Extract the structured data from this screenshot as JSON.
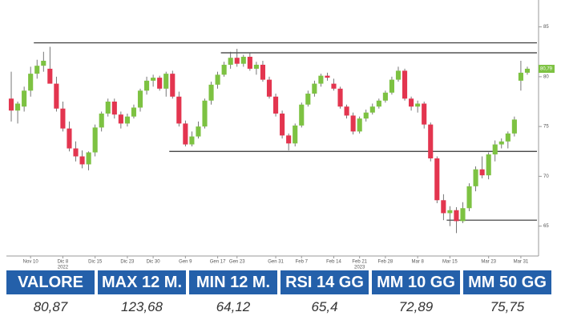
{
  "chart_data": {
    "type": "candlestick",
    "open": [
      77.8,
      76.6,
      77.0,
      78.6,
      80.3,
      81.1,
      80.8,
      79.3,
      76.8,
      74.8,
      72.8,
      72.0,
      71.2,
      72.4,
      74.9,
      76.3,
      77.5,
      76.2,
      75.3,
      76.0,
      76.9,
      78.6,
      79.6,
      79.9,
      78.8,
      80.3,
      78.0,
      75.3,
      73.2,
      74.0,
      75.0,
      77.6,
      79.2,
      80.2,
      81.2,
      81.9,
      81.3,
      82.0,
      80.8,
      81.2,
      79.7,
      78.0,
      76.3,
      74.1,
      73.3,
      75.1,
      77.2,
      78.3,
      79.3,
      80.1,
      79.3,
      78.8,
      77.0,
      76.1,
      74.5,
      75.8,
      76.4,
      77.0,
      77.6,
      78.4,
      79.7,
      80.6,
      77.8,
      77.0,
      77.3,
      75.2,
      71.8,
      67.6,
      66.3,
      66.6,
      65.5,
      66.8,
      69.0,
      70.7,
      70.1,
      72.2,
      73.2,
      73.5,
      74.3,
      79.6,
      80.4
    ],
    "high": [
      80.5,
      77.5,
      79.0,
      81.0,
      81.7,
      82.5,
      83.0,
      80.0,
      77.5,
      75.5,
      73.5,
      72.6,
      72.5,
      75.2,
      76.5,
      77.8,
      77.8,
      76.5,
      76.3,
      77.2,
      78.8,
      80.0,
      80.2,
      80.1,
      80.5,
      80.6,
      78.5,
      75.6,
      74.5,
      75.5,
      77.8,
      79.5,
      80.5,
      81.5,
      82.5,
      82.8,
      82.2,
      82.4,
      81.5,
      81.6,
      80.0,
      78.3,
      76.6,
      74.3,
      75.3,
      77.4,
      78.6,
      79.6,
      80.3,
      80.4,
      79.8,
      79.0,
      77.2,
      76.4,
      76.0,
      76.7,
      77.3,
      77.8,
      78.6,
      80.0,
      81.0,
      80.8,
      78.0,
      77.6,
      77.5,
      75.4,
      72.0,
      68.2,
      67.0,
      66.9,
      67.4,
      69.3,
      71.0,
      72.0,
      72.4,
      73.6,
      73.8,
      74.5,
      76.0,
      81.6,
      81.0
    ],
    "low": [
      75.5,
      75.3,
      76.5,
      78.0,
      79.8,
      80.5,
      79.5,
      76.5,
      74.5,
      72.5,
      71.5,
      70.8,
      70.6,
      72.0,
      74.5,
      76.0,
      75.8,
      74.8,
      75.0,
      75.8,
      76.5,
      78.2,
      79.0,
      78.6,
      78.0,
      77.8,
      75.0,
      73.0,
      73.0,
      73.8,
      74.8,
      77.2,
      78.8,
      80.0,
      80.8,
      81.0,
      81.0,
      80.6,
      80.2,
      79.5,
      77.8,
      76.0,
      73.8,
      72.6,
      73.0,
      74.9,
      77.0,
      78.0,
      79.0,
      79.6,
      78.6,
      76.8,
      75.8,
      74.2,
      74.3,
      75.5,
      76.2,
      76.8,
      77.4,
      78.2,
      79.5,
      77.6,
      76.6,
      76.4,
      74.8,
      71.5,
      67.3,
      65.6,
      65.0,
      64.3,
      65.3,
      66.5,
      68.5,
      69.8,
      69.7,
      71.5,
      72.8,
      72.8,
      74.0,
      78.6,
      80.2
    ],
    "close": [
      76.6,
      77.3,
      78.6,
      80.3,
      81.1,
      81.6,
      79.3,
      76.8,
      74.8,
      72.8,
      72.0,
      71.2,
      72.4,
      74.9,
      76.3,
      77.5,
      76.2,
      75.3,
      76.0,
      76.9,
      78.6,
      79.6,
      79.9,
      78.8,
      80.3,
      78.0,
      75.3,
      73.2,
      74.0,
      75.0,
      77.6,
      79.2,
      80.2,
      81.2,
      81.9,
      81.3,
      82.0,
      80.8,
      81.2,
      79.7,
      78.0,
      76.3,
      74.1,
      73.3,
      75.1,
      77.2,
      78.3,
      79.3,
      80.1,
      79.9,
      78.8,
      77.0,
      76.1,
      74.5,
      75.8,
      76.4,
      77.0,
      77.6,
      78.4,
      79.7,
      80.6,
      77.8,
      77.0,
      77.3,
      75.2,
      71.8,
      67.6,
      66.3,
      66.6,
      65.5,
      66.8,
      69.0,
      70.7,
      70.1,
      72.2,
      73.2,
      73.5,
      74.3,
      75.7,
      80.4,
      80.8
    ],
    "up_color": "#7dc242",
    "down_color": "#e3354f",
    "levels": [
      {
        "value": 83.4,
        "from": 4
      },
      {
        "value": 82.4,
        "from": 33
      },
      {
        "value": 72.5,
        "from": 25
      },
      {
        "value": 65.6,
        "from": 68
      }
    ],
    "last_price": {
      "value": 80.79,
      "label": "80,79"
    },
    "ylim": [
      62,
      87.7
    ],
    "yticks": [
      65,
      70,
      75,
      80,
      85
    ],
    "xticks": [
      {
        "value": 3,
        "label": "Nov 10"
      },
      {
        "value": 8,
        "label": "Dic 8"
      },
      {
        "value": 13,
        "label": "Dic 15"
      },
      {
        "value": 18,
        "label": "Dic 23"
      },
      {
        "value": 22,
        "label": "Dic 30"
      },
      {
        "value": 27,
        "label": "Gen 9"
      },
      {
        "value": 32,
        "label": "Gen 17"
      },
      {
        "value": 35,
        "label": "Gen 23"
      },
      {
        "value": 41,
        "label": "Gen 31"
      },
      {
        "value": 45,
        "label": "Feb 7"
      },
      {
        "value": 50,
        "label": "Feb 14"
      },
      {
        "value": 54,
        "label": "Feb 21"
      },
      {
        "value": 58,
        "label": "Feb 28"
      },
      {
        "value": 63,
        "label": "Mar 8"
      },
      {
        "value": 68,
        "label": "Mar 15"
      },
      {
        "value": 74,
        "label": "Mar 23"
      },
      {
        "value": 79,
        "label": "Mar 31"
      }
    ],
    "year_labels": [
      {
        "value": 8,
        "label": "2022"
      },
      {
        "value": 54,
        "label": "2023"
      }
    ]
  },
  "table": {
    "headers": [
      "VALORE",
      "MAX 12 M.",
      "MIN 12 M.",
      "RSI 14 GG",
      "MM 10 GG",
      "MM 50 GG"
    ],
    "values": [
      "80,87",
      "123,68",
      "64,12",
      "65,4",
      "72,89",
      "75,75"
    ]
  }
}
